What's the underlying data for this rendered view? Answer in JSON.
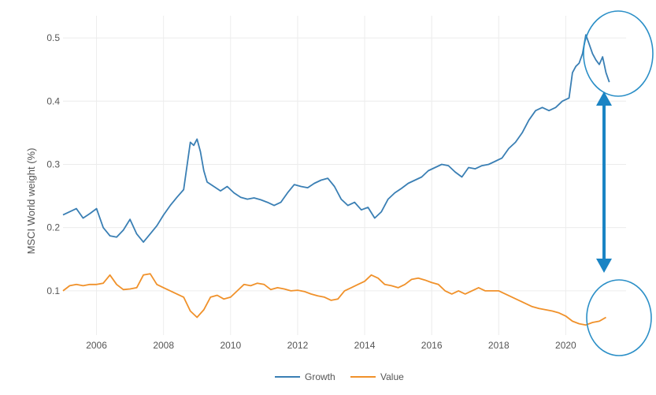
{
  "chart_data": {
    "type": "line",
    "ylabel": "MSCI World weight (%)",
    "xlabel": "",
    "xlim": [
      2005.0,
      2021.8
    ],
    "ylim": [
      0.03,
      0.535
    ],
    "xticks": [
      2006,
      2008,
      2010,
      2012,
      2014,
      2016,
      2018,
      2020
    ],
    "xtick_labels": [
      "2006",
      "2008",
      "2010",
      "2012",
      "2014",
      "2016",
      "2018",
      "2020"
    ],
    "yticks": [
      0.1,
      0.2,
      0.3,
      0.4,
      0.5
    ],
    "ytick_labels": [
      "0.1",
      "0.2",
      "0.3",
      "0.4",
      "0.5"
    ],
    "grid": true,
    "legend_position": "bottom-center",
    "series": [
      {
        "name": "Growth",
        "color": "#3a7fb4",
        "x": [
          2005.0,
          2005.2,
          2005.4,
          2005.6,
          2005.8,
          2006.0,
          2006.2,
          2006.4,
          2006.6,
          2006.8,
          2007.0,
          2007.2,
          2007.4,
          2007.6,
          2007.8,
          2008.0,
          2008.2,
          2008.4,
          2008.6,
          2008.8,
          2008.9,
          2009.0,
          2009.1,
          2009.2,
          2009.3,
          2009.5,
          2009.7,
          2009.9,
          2010.1,
          2010.3,
          2010.5,
          2010.7,
          2010.9,
          2011.1,
          2011.3,
          2011.5,
          2011.7,
          2011.9,
          2012.1,
          2012.3,
          2012.5,
          2012.7,
          2012.9,
          2013.1,
          2013.3,
          2013.5,
          2013.7,
          2013.9,
          2014.1,
          2014.3,
          2014.5,
          2014.7,
          2014.9,
          2015.1,
          2015.3,
          2015.5,
          2015.7,
          2015.9,
          2016.1,
          2016.3,
          2016.5,
          2016.7,
          2016.9,
          2017.1,
          2017.3,
          2017.5,
          2017.7,
          2017.9,
          2018.1,
          2018.3,
          2018.5,
          2018.7,
          2018.9,
          2019.1,
          2019.3,
          2019.5,
          2019.7,
          2019.9,
          2020.1,
          2020.2,
          2020.3,
          2020.4,
          2020.5,
          2020.6,
          2020.7,
          2020.8,
          2020.9,
          2021.0,
          2021.1,
          2021.2,
          2021.3
        ],
        "values": [
          0.22,
          0.225,
          0.23,
          0.215,
          0.222,
          0.23,
          0.2,
          0.187,
          0.185,
          0.196,
          0.213,
          0.19,
          0.177,
          0.19,
          0.203,
          0.22,
          0.235,
          0.248,
          0.26,
          0.335,
          0.33,
          0.34,
          0.32,
          0.29,
          0.272,
          0.265,
          0.258,
          0.265,
          0.255,
          0.248,
          0.245,
          0.247,
          0.244,
          0.24,
          0.235,
          0.24,
          0.255,
          0.268,
          0.265,
          0.263,
          0.27,
          0.275,
          0.278,
          0.265,
          0.245,
          0.235,
          0.24,
          0.228,
          0.232,
          0.215,
          0.225,
          0.245,
          0.255,
          0.262,
          0.27,
          0.275,
          0.28,
          0.29,
          0.295,
          0.3,
          0.298,
          0.288,
          0.28,
          0.295,
          0.293,
          0.298,
          0.3,
          0.305,
          0.31,
          0.325,
          0.335,
          0.35,
          0.37,
          0.385,
          0.39,
          0.385,
          0.39,
          0.4,
          0.405,
          0.445,
          0.455,
          0.46,
          0.475,
          0.505,
          0.49,
          0.475,
          0.465,
          0.458,
          0.47,
          0.445,
          0.43
        ]
      },
      {
        "name": "Value",
        "color": "#f0912a",
        "x": [
          2005.0,
          2005.2,
          2005.4,
          2005.6,
          2005.8,
          2006.0,
          2006.2,
          2006.4,
          2006.6,
          2006.8,
          2007.0,
          2007.2,
          2007.4,
          2007.6,
          2007.8,
          2008.0,
          2008.2,
          2008.4,
          2008.6,
          2008.8,
          2009.0,
          2009.2,
          2009.4,
          2009.6,
          2009.8,
          2010.0,
          2010.2,
          2010.4,
          2010.6,
          2010.8,
          2011.0,
          2011.2,
          2011.4,
          2011.6,
          2011.8,
          2012.0,
          2012.2,
          2012.4,
          2012.6,
          2012.8,
          2013.0,
          2013.2,
          2013.4,
          2013.6,
          2013.8,
          2014.0,
          2014.2,
          2014.4,
          2014.6,
          2014.8,
          2015.0,
          2015.2,
          2015.4,
          2015.6,
          2015.8,
          2016.0,
          2016.2,
          2016.4,
          2016.6,
          2016.8,
          2017.0,
          2017.2,
          2017.4,
          2017.6,
          2017.8,
          2018.0,
          2018.2,
          2018.4,
          2018.6,
          2018.8,
          2019.0,
          2019.2,
          2019.4,
          2019.6,
          2019.8,
          2020.0,
          2020.2,
          2020.4,
          2020.6,
          2020.8,
          2021.0,
          2021.2
        ],
        "values": [
          0.1,
          0.108,
          0.11,
          0.108,
          0.11,
          0.11,
          0.112,
          0.125,
          0.11,
          0.102,
          0.103,
          0.105,
          0.125,
          0.127,
          0.11,
          0.105,
          0.1,
          0.095,
          0.09,
          0.068,
          0.058,
          0.07,
          0.09,
          0.093,
          0.087,
          0.09,
          0.1,
          0.11,
          0.108,
          0.112,
          0.11,
          0.102,
          0.105,
          0.103,
          0.1,
          0.101,
          0.099,
          0.095,
          0.092,
          0.09,
          0.085,
          0.087,
          0.1,
          0.105,
          0.11,
          0.115,
          0.125,
          0.12,
          0.11,
          0.108,
          0.105,
          0.11,
          0.118,
          0.12,
          0.117,
          0.113,
          0.11,
          0.1,
          0.095,
          0.1,
          0.095,
          0.1,
          0.105,
          0.1,
          0.1,
          0.1,
          0.095,
          0.09,
          0.085,
          0.08,
          0.075,
          0.072,
          0.07,
          0.068,
          0.065,
          0.06,
          0.052,
          0.048,
          0.046,
          0.05,
          0.052,
          0.058
        ]
      }
    ]
  },
  "annotations": {
    "circle_color": "#2b8fc7",
    "arrow_color": "#1a84c4"
  }
}
